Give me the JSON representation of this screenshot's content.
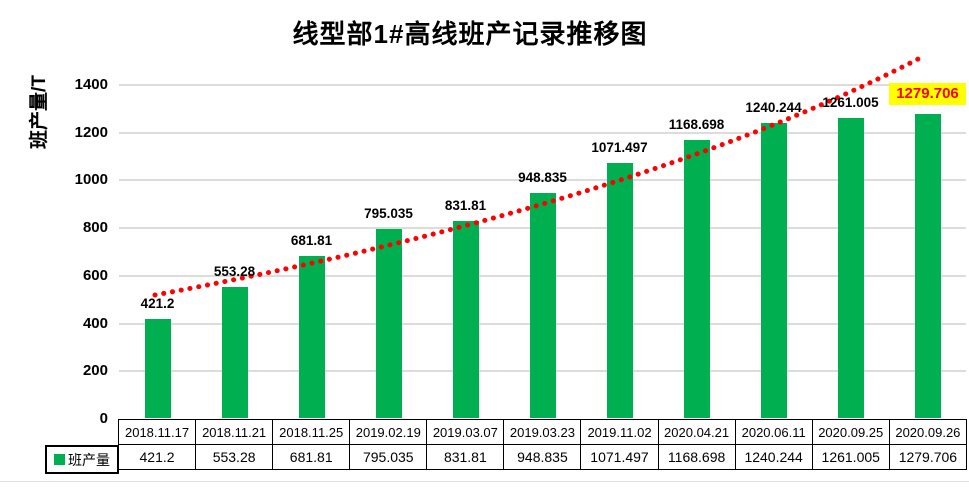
{
  "chart_data": {
    "type": "bar",
    "title": "线型部1#高线班产记录推移图",
    "ylabel": "班产量/T",
    "xlabel": "",
    "ylim": [
      0,
      1400
    ],
    "yticks": [
      0,
      200,
      400,
      600,
      800,
      1000,
      1200,
      1400
    ],
    "grid": "horizontal",
    "legend_position": "data-table-left",
    "categories": [
      "2018.11.17",
      "2018.11.21",
      "2018.11.25",
      "2019.02.19",
      "2019.03.07",
      "2019.03.23",
      "2019.11.02",
      "2020.04.21",
      "2020.06.11",
      "2020.09.25",
      "2020.09.26"
    ],
    "series": [
      {
        "name": "班产量",
        "color": "#00B050",
        "values": [
          421.2,
          553.28,
          681.81,
          795.035,
          831.81,
          948.835,
          1071.497,
          1168.698,
          1240.244,
          1261.005,
          1279.706
        ],
        "value_labels": [
          "421.2",
          "553.28",
          "681.81",
          "795.035",
          "831.81",
          "948.835",
          "1071.497",
          "1168.698",
          "1240.244",
          "1261.005",
          "1279.706"
        ]
      }
    ],
    "legend_label": "班产量",
    "trendline": {
      "style": "dotted",
      "color": "#FF0000"
    },
    "highlight_last": {
      "value_label": "1279.706",
      "text_color": "#FF0000",
      "background": "#FFFF00"
    },
    "colors": {
      "bar": "#00B050",
      "grid": "#DCDCDC",
      "text": "#000000"
    },
    "data_table_shown": true
  }
}
